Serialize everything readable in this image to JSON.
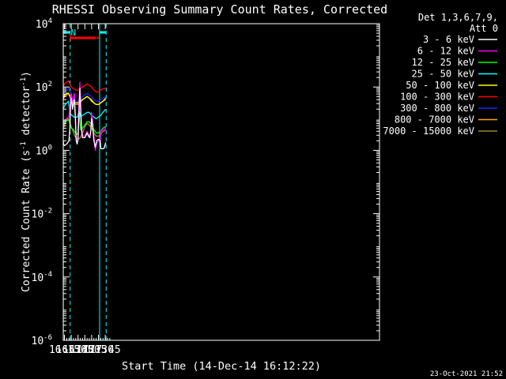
{
  "chart_data": {
    "type": "line",
    "title": "RHESSI Observing Summary Count Rates, Corrected",
    "xlabel": "Start Time (14-Dec-14 16:12:22)",
    "ylabel_main": "Corrected Count Rate (s",
    "ylabel_sup1": "-1",
    "ylabel_mid": " detector",
    "ylabel_sup2": "-1",
    "ylabel_end": ")",
    "yscale": "log",
    "ylim_exp": [
      -6,
      4
    ],
    "xlim_min": [
      972.37,
      1670
    ],
    "x_unit": "minutes since 00:00 UT",
    "x_ticks": [
      {
        "min": 975,
        "label": "16:15"
      },
      {
        "min": 990,
        "label": "16:30"
      },
      {
        "min": 1005,
        "label": "16:45"
      },
      {
        "min": 1020,
        "label": "17:00"
      },
      {
        "min": 1035,
        "label": "17:15"
      },
      {
        "min": 1050,
        "label": "17:30"
      },
      {
        "min": 1065,
        "label": "17:45"
      }
    ],
    "y_ticks": [
      {
        "exp": 4,
        "base": "10",
        "sup": "4"
      },
      {
        "exp": 2,
        "base": "10",
        "sup": "2"
      },
      {
        "exp": 0,
        "base": "10",
        "sup": "0"
      },
      {
        "exp": -2,
        "base": "10",
        "sup": "-2"
      },
      {
        "exp": -4,
        "base": "10",
        "sup": "-4"
      },
      {
        "exp": -6,
        "base": "10",
        "sup": "-6"
      }
    ],
    "legend_header": [
      "Det 1,3,6,7,9,",
      "Att 0"
    ],
    "legend_position": "right",
    "series": [
      {
        "name": "3 - 6 keV",
        "color": "#ffffff",
        "points": [
          [
            972.4,
            0.3
          ],
          [
            973,
            0.2
          ],
          [
            975,
            0.15
          ],
          [
            980,
            0.2
          ],
          [
            985,
            0.3
          ],
          [
            987,
            0.7
          ],
          [
            988,
            1.2
          ],
          [
            990,
            1.65
          ],
          [
            992,
            1.45
          ],
          [
            993,
            1.3
          ],
          [
            996,
            1.55
          ],
          [
            997,
            1.6
          ],
          [
            999,
            1.0
          ],
          [
            1001,
            0.3
          ],
          [
            1003,
            0.2
          ],
          [
            1005,
            0.35
          ],
          [
            1007,
            1.2
          ],
          [
            1009,
            1.95
          ],
          [
            1011,
            1.2
          ],
          [
            1013,
            0.6
          ],
          [
            1015,
            0.4
          ],
          [
            1020,
            0.4
          ],
          [
            1025,
            0.55
          ],
          [
            1028,
            0.45
          ],
          [
            1031,
            0.4
          ],
          [
            1033,
            0.6
          ],
          [
            1035,
            1.0
          ],
          [
            1037,
            0.8
          ],
          [
            1040,
            0.3
          ],
          [
            1043,
            0.1
          ],
          [
            1046,
            0.3
          ],
          [
            1050,
            0.35
          ],
          [
            1054,
            0.3
          ],
          [
            1055,
            0.1
          ],
          [
            1055.5,
            0.05
          ],
          [
            1060,
            0.05
          ],
          [
            1063,
            0.08
          ],
          [
            1066,
            0.25
          ]
        ]
      },
      {
        "name": "6 - 12 keV",
        "color": "#ff00ff",
        "points": [
          [
            972.4,
            0.9
          ],
          [
            975,
            0.95
          ],
          [
            980,
            1.0
          ],
          [
            985,
            1.05
          ],
          [
            987,
            1.4
          ],
          [
            988,
            1.6
          ],
          [
            990,
            1.8
          ],
          [
            992,
            1.55
          ],
          [
            993,
            1.5
          ],
          [
            996,
            1.75
          ],
          [
            997,
            1.8
          ],
          [
            999,
            1.2
          ],
          [
            1001,
            0.35
          ],
          [
            1003,
            0.25
          ],
          [
            1005,
            0.5
          ],
          [
            1007,
            1.5
          ],
          [
            1009,
            2.15
          ],
          [
            1011,
            1.5
          ],
          [
            1013,
            0.75
          ],
          [
            1015,
            0.45
          ],
          [
            1020,
            0.45
          ],
          [
            1025,
            0.6
          ],
          [
            1028,
            0.5
          ],
          [
            1031,
            0.45
          ],
          [
            1033,
            0.6
          ],
          [
            1035,
            1.2
          ],
          [
            1037,
            0.95
          ],
          [
            1040,
            0.45
          ],
          [
            1043,
            0.0
          ],
          [
            1046,
            0.2
          ],
          [
            1050,
            0.3
          ],
          [
            1054,
            0.3
          ],
          [
            1055,
            0.6
          ],
          [
            1060,
            0.65
          ],
          [
            1063,
            0.6
          ],
          [
            1066,
            0.75
          ]
        ]
      },
      {
        "name": "12 - 25 keV",
        "color": "#00ff00",
        "points": [
          [
            972.4,
            0.8
          ],
          [
            975,
            0.9
          ],
          [
            980,
            0.95
          ],
          [
            985,
            0.95
          ],
          [
            987,
            0.85
          ],
          [
            990,
            0.7
          ],
          [
            995,
            0.65
          ],
          [
            999,
            0.55
          ],
          [
            1003,
            0.5
          ],
          [
            1005,
            0.6
          ],
          [
            1007,
            1.2
          ],
          [
            1009,
            0.9
          ],
          [
            1011,
            0.65
          ],
          [
            1015,
            0.7
          ],
          [
            1020,
            0.8
          ],
          [
            1025,
            0.9
          ],
          [
            1030,
            0.9
          ],
          [
            1035,
            0.8
          ],
          [
            1040,
            0.65
          ],
          [
            1045,
            0.55
          ],
          [
            1050,
            0.55
          ],
          [
            1055,
            0.6
          ],
          [
            1060,
            0.7
          ],
          [
            1066,
            0.75
          ]
        ]
      },
      {
        "name": "25 - 50 keV",
        "color": "#00ffff",
        "points": [
          [
            972.4,
            1.3
          ],
          [
            975,
            1.4
          ],
          [
            980,
            1.5
          ],
          [
            984,
            1.55
          ],
          [
            986,
            1.3
          ],
          [
            988,
            1.15
          ],
          [
            992,
            1.1
          ],
          [
            996,
            1.05
          ],
          [
            1000,
            1.05
          ],
          [
            1003,
            1.05
          ],
          [
            1005,
            1.1
          ],
          [
            1007,
            1.25
          ],
          [
            1009,
            1.15
          ],
          [
            1011,
            1.05
          ],
          [
            1015,
            1.1
          ],
          [
            1020,
            1.15
          ],
          [
            1025,
            1.2
          ],
          [
            1030,
            1.2
          ],
          [
            1035,
            1.1
          ],
          [
            1040,
            1.05
          ],
          [
            1045,
            1.0
          ],
          [
            1050,
            1.05
          ],
          [
            1055,
            1.1
          ],
          [
            1060,
            1.2
          ],
          [
            1066,
            1.3
          ]
        ]
      },
      {
        "name": "50 - 100 keV",
        "color": "#ffff00",
        "points": [
          [
            972.4,
            1.65
          ],
          [
            975,
            1.75
          ],
          [
            980,
            1.8
          ],
          [
            984,
            1.8
          ],
          [
            987,
            1.7
          ],
          [
            990,
            1.6
          ],
          [
            995,
            1.55
          ],
          [
            1000,
            1.5
          ],
          [
            1005,
            1.5
          ],
          [
            1010,
            1.55
          ],
          [
            1015,
            1.6
          ],
          [
            1020,
            1.65
          ],
          [
            1025,
            1.7
          ],
          [
            1030,
            1.65
          ],
          [
            1035,
            1.55
          ],
          [
            1040,
            1.5
          ],
          [
            1045,
            1.45
          ],
          [
            1050,
            1.45
          ],
          [
            1055,
            1.5
          ],
          [
            1060,
            1.55
          ],
          [
            1066,
            1.65
          ]
        ]
      },
      {
        "name": "100 - 300 keV",
        "color": "#ff0000",
        "points": [
          [
            972.4,
            2.0
          ],
          [
            975,
            2.1
          ],
          [
            980,
            2.15
          ],
          [
            984,
            2.2
          ],
          [
            987,
            2.1
          ],
          [
            990,
            2.0
          ],
          [
            995,
            1.95
          ],
          [
            1000,
            1.9
          ],
          [
            1005,
            1.9
          ],
          [
            1010,
            1.95
          ],
          [
            1015,
            2.0
          ],
          [
            1020,
            2.05
          ],
          [
            1025,
            2.1
          ],
          [
            1030,
            2.05
          ],
          [
            1035,
            2.0
          ],
          [
            1040,
            1.9
          ],
          [
            1045,
            1.85
          ],
          [
            1050,
            1.85
          ],
          [
            1055,
            1.9
          ],
          [
            1060,
            1.95
          ],
          [
            1066,
            1.95
          ]
        ]
      },
      {
        "name": "300 - 800 keV",
        "color": "#2020ff",
        "points": [
          [
            972.4,
            1.75
          ],
          [
            975,
            1.85
          ],
          [
            980,
            1.9
          ],
          [
            984,
            1.95
          ],
          [
            987,
            1.85
          ],
          [
            990,
            1.7
          ],
          [
            995,
            1.6
          ],
          [
            1000,
            1.55
          ],
          [
            1005,
            1.55
          ],
          [
            1010,
            1.6
          ],
          [
            1015,
            1.7
          ],
          [
            1020,
            1.75
          ],
          [
            1025,
            1.8
          ],
          [
            1030,
            1.75
          ],
          [
            1035,
            1.7
          ],
          [
            1040,
            1.6
          ],
          [
            1045,
            1.55
          ],
          [
            1050,
            1.55
          ],
          [
            1055,
            1.6
          ],
          [
            1060,
            1.65
          ],
          [
            1066,
            1.7
          ]
        ]
      },
      {
        "name": "800 - 7000 keV",
        "color": "#ffa500",
        "points": [
          [
            972.4,
            1.6
          ],
          [
            975,
            1.7
          ],
          [
            980,
            1.75
          ],
          [
            984,
            1.8
          ],
          [
            987,
            1.7
          ],
          [
            990,
            1.55
          ],
          [
            995,
            1.5
          ],
          [
            1000,
            1.45
          ],
          [
            1005,
            1.45
          ],
          [
            1010,
            1.5
          ],
          [
            1015,
            1.6
          ],
          [
            1020,
            1.65
          ],
          [
            1025,
            1.7
          ],
          [
            1030,
            1.65
          ],
          [
            1035,
            1.6
          ],
          [
            1040,
            1.5
          ],
          [
            1045,
            1.45
          ],
          [
            1050,
            1.45
          ],
          [
            1055,
            1.5
          ],
          [
            1060,
            1.55
          ],
          [
            1066,
            1.6
          ]
        ]
      },
      {
        "name": "7000 - 15000 keV",
        "color": "#9b8b2a",
        "points": [
          [
            972.4,
            0.65
          ],
          [
            975,
            0.8
          ],
          [
            980,
            0.95
          ],
          [
            984,
            1.0
          ],
          [
            987,
            0.9
          ],
          [
            990,
            0.75
          ],
          [
            995,
            0.55
          ],
          [
            1000,
            0.4
          ],
          [
            1005,
            0.35
          ],
          [
            1010,
            0.4
          ],
          [
            1015,
            0.55
          ],
          [
            1020,
            0.75
          ],
          [
            1025,
            0.85
          ],
          [
            1030,
            0.8
          ],
          [
            1035,
            0.7
          ],
          [
            1040,
            0.55
          ],
          [
            1045,
            0.45
          ],
          [
            1050,
            0.45
          ],
          [
            1055,
            0.5
          ],
          [
            1060,
            0.6
          ],
          [
            1066,
            0.65
          ]
        ]
      }
    ],
    "bars": [
      {
        "label": "N",
        "color": "#00ffff",
        "segments": [
          [
            972.4,
            987.5
          ],
          [
            1052.6,
            1067
          ]
        ],
        "label_at": 989
      },
      {
        "label": "F",
        "color": "#ff0000",
        "segments": [
          [
            987.8,
            1044.4
          ],
          [
            1046.5,
            1050.1
          ],
          [
            1050.8,
            1052.3
          ]
        ],
        "label_at": 985.4
      }
    ],
    "vlines": [
      {
        "min": 972.5,
        "color": "#00ffff",
        "style": "solid"
      },
      {
        "min": 987.5,
        "color": "#00ffff",
        "style": "dashed"
      },
      {
        "min": 1052.6,
        "color": "#00ffff",
        "style": "solid"
      },
      {
        "min": 1067,
        "color": "#00ffff",
        "style": "dashed"
      }
    ]
  },
  "footer": {
    "timestamp": "23-Oct-2021 21:52"
  }
}
